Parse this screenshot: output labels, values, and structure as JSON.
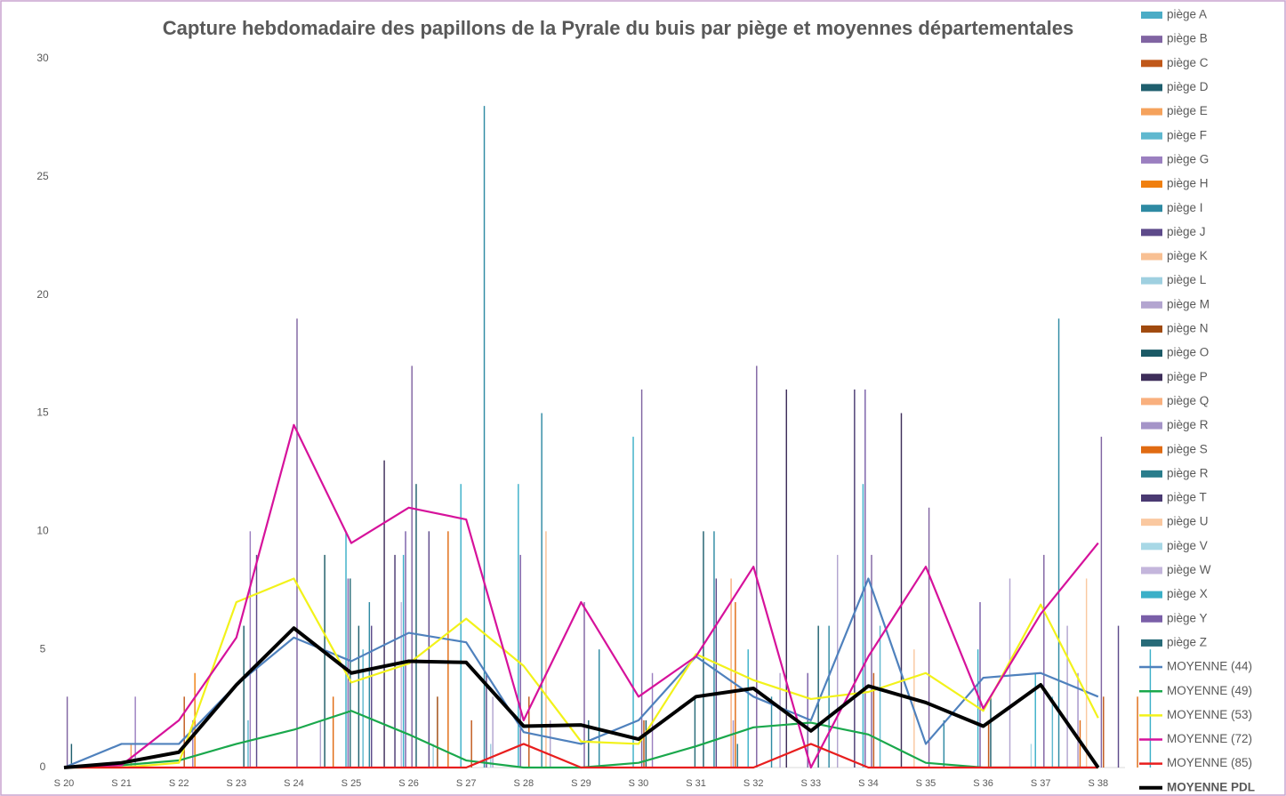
{
  "chart_data": {
    "type": "bar",
    "title": "Capture hebdomadaire des papillons de la Pyrale du buis par piège et moyennes départementales",
    "categories": [
      "S 20",
      "S 21",
      "S 22",
      "S 23",
      "S 24",
      "S 25",
      "S 26",
      "S 27",
      "S 28",
      "S 29",
      "S 30",
      "S 31",
      "S 32",
      "S 33",
      "S 34",
      "S 35",
      "S 36",
      "S 37",
      "S 38"
    ],
    "ylim": [
      0,
      30
    ],
    "yticks": [
      0,
      5,
      10,
      15,
      20,
      25,
      30
    ],
    "grid": false,
    "legend": "right",
    "series": [
      {
        "name": "piège A",
        "color": "#4bacc6",
        "values": [
          0,
          0,
          0,
          0,
          0,
          0,
          0,
          0,
          0,
          0,
          0,
          0,
          0,
          0,
          0,
          0,
          0,
          0,
          0
        ]
      },
      {
        "name": "piège B",
        "color": "#8064a2",
        "values": [
          3,
          0,
          0,
          0,
          19,
          0,
          17,
          0,
          0,
          7,
          16,
          0,
          17,
          0,
          9,
          11,
          0,
          9,
          14
        ]
      },
      {
        "name": "piège C",
        "color": "#c0581a",
        "values": [
          0,
          0,
          3,
          0,
          0,
          0,
          0,
          2,
          3,
          0,
          2,
          0,
          0,
          0,
          4,
          0,
          2,
          0,
          3
        ]
      },
      {
        "name": "piège D",
        "color": "#1f5f6e",
        "values": [
          1,
          0,
          0,
          6,
          0,
          6,
          12,
          0,
          0,
          2,
          2,
          10,
          0,
          6,
          0,
          0,
          3,
          0,
          0
        ]
      },
      {
        "name": "piège E",
        "color": "#f5a25c",
        "values": [
          0,
          1,
          0,
          0,
          0,
          0,
          0,
          0,
          0,
          0,
          0,
          0,
          0,
          0,
          0,
          0,
          0,
          0,
          0
        ]
      },
      {
        "name": "piège F",
        "color": "#5fb8cf",
        "values": [
          0,
          0,
          0,
          2,
          0,
          5,
          0,
          0,
          0,
          0,
          0,
          0,
          0,
          0,
          6,
          0,
          0,
          3,
          0
        ]
      },
      {
        "name": "piège G",
        "color": "#9b7fc0",
        "values": [
          0,
          3,
          2,
          10,
          0,
          0,
          0,
          0,
          0,
          0,
          4,
          0,
          0,
          0,
          0,
          0,
          0,
          0,
          0
        ]
      },
      {
        "name": "piège H",
        "color": "#f07f0f",
        "values": [
          0,
          0,
          4,
          0,
          0,
          0,
          0,
          0,
          0,
          0,
          0,
          0,
          0,
          0,
          0,
          0,
          0,
          0,
          0
        ]
      },
      {
        "name": "piège I",
        "color": "#2e8aa3",
        "values": [
          0,
          0,
          0,
          0,
          0,
          7,
          0,
          28,
          15,
          5,
          0,
          10,
          3,
          6,
          0,
          2,
          0,
          19,
          0
        ]
      },
      {
        "name": "piège J",
        "color": "#5d4a8a",
        "values": [
          0,
          0,
          0,
          9,
          0,
          6,
          10,
          4,
          0,
          0,
          0,
          8,
          0,
          0,
          0,
          0,
          0,
          0,
          6
        ]
      },
      {
        "name": "piège K",
        "color": "#f8c093",
        "values": [
          0,
          0,
          0,
          0,
          0,
          0,
          0,
          0,
          10,
          0,
          0,
          0,
          0,
          0,
          0,
          0,
          0,
          0,
          0
        ]
      },
      {
        "name": "piège L",
        "color": "#9fd0e0",
        "values": [
          0,
          0,
          0,
          0,
          0,
          0,
          1,
          1,
          0,
          0,
          0,
          0,
          0,
          0,
          0,
          0,
          0,
          0,
          0
        ]
      },
      {
        "name": "piège M",
        "color": "#b3a5d0",
        "values": [
          0,
          0,
          0,
          0,
          2,
          0,
          0,
          3,
          2,
          0,
          0,
          0,
          4,
          9,
          0,
          0,
          8,
          6,
          0
        ]
      },
      {
        "name": "piège N",
        "color": "#a04a0e",
        "values": [
          0,
          0,
          0,
          0,
          0,
          0,
          3,
          0,
          0,
          0,
          0,
          0,
          0,
          0,
          0,
          0,
          0,
          0,
          0
        ]
      },
      {
        "name": "piège O",
        "color": "#1b5a66",
        "values": [
          0,
          0,
          0,
          0,
          9,
          0,
          0,
          0,
          0,
          0,
          0,
          0,
          0,
          0,
          0,
          0,
          0,
          0,
          0
        ]
      },
      {
        "name": "piège P",
        "color": "#3e2e5a",
        "values": [
          0,
          0,
          0,
          0,
          0,
          13,
          0,
          0,
          0,
          0,
          0,
          0,
          16,
          0,
          15,
          0,
          0,
          0,
          0
        ]
      },
      {
        "name": "piège Q",
        "color": "#f9b07e",
        "values": [
          0,
          0,
          0,
          0,
          0,
          0,
          0,
          0,
          0,
          0,
          0,
          8,
          0,
          0,
          0,
          0,
          0,
          0,
          0
        ]
      },
      {
        "name": "piège R",
        "color": "#a594c8",
        "values": [
          0,
          0,
          0,
          0,
          0,
          0,
          0,
          0,
          0,
          0,
          0,
          2,
          0,
          0,
          0,
          0,
          0,
          4,
          0
        ]
      },
      {
        "name": "piège S",
        "color": "#e06b12",
        "values": [
          0,
          0,
          0,
          0,
          3,
          0,
          10,
          0,
          0,
          0,
          0,
          7,
          0,
          0,
          0,
          0,
          0,
          2,
          3
        ]
      },
      {
        "name": "piège R",
        "color": "#2a7d8c",
        "values": [
          0,
          0,
          0,
          0,
          0,
          0,
          0,
          0,
          0,
          0,
          0,
          1,
          0,
          0,
          0,
          0,
          0,
          0,
          0
        ]
      },
      {
        "name": "piège T",
        "color": "#4a3a72",
        "values": [
          0,
          0,
          0,
          0,
          0,
          9,
          0,
          0,
          0,
          0,
          0,
          0,
          0,
          16,
          0,
          0,
          0,
          0,
          0
        ]
      },
      {
        "name": "piège U",
        "color": "#fac8a0",
        "values": [
          0,
          0,
          0,
          0,
          0,
          0,
          0,
          0,
          0,
          0,
          0,
          0,
          0,
          0,
          5,
          0,
          0,
          8,
          0
        ]
      },
      {
        "name": "piège V",
        "color": "#a8d8e6",
        "values": [
          0,
          0,
          0,
          0,
          0,
          0,
          0,
          0,
          0,
          0,
          0,
          0,
          0,
          0,
          0,
          0,
          1,
          0,
          0
        ]
      },
      {
        "name": "piège W",
        "color": "#c4b6dc",
        "values": [
          0,
          0,
          0,
          0,
          0,
          7,
          0,
          0,
          0,
          0,
          0,
          0,
          0,
          0,
          0,
          0,
          0,
          0,
          0
        ]
      },
      {
        "name": "piège X",
        "color": "#3bb0c8",
        "values": [
          0,
          0,
          0,
          0,
          10,
          9,
          12,
          12,
          0,
          14,
          0,
          5,
          0,
          12,
          0,
          5,
          4,
          0,
          5
        ]
      },
      {
        "name": "piège Y",
        "color": "#7a5fa8",
        "values": [
          0,
          0,
          0,
          0,
          8,
          10,
          0,
          9,
          0,
          0,
          0,
          0,
          4,
          16,
          0,
          7,
          0,
          0,
          0
        ]
      },
      {
        "name": "piège Z",
        "color": "#276b78",
        "values": [
          0,
          0,
          0,
          0,
          8,
          0,
          0,
          0,
          0,
          0,
          3,
          0,
          0,
          0,
          0,
          0,
          0,
          0,
          0
        ]
      },
      {
        "name": "MOYENNE (44)",
        "type": "line",
        "color": "#4f81bd",
        "values": [
          0,
          1,
          1,
          3.5,
          5.5,
          4.5,
          5.7,
          5.3,
          1.5,
          1,
          2,
          4.7,
          3,
          2,
          8,
          1,
          3.8,
          4,
          3
        ]
      },
      {
        "name": "MOYENNE (49)",
        "type": "line",
        "color": "#1aa84c",
        "values": [
          0,
          0.1,
          0.3,
          1,
          1.6,
          2.4,
          1.4,
          0.3,
          0,
          0,
          0.2,
          0.9,
          1.7,
          1.9,
          1.4,
          0.2,
          0,
          0,
          0
        ]
      },
      {
        "name": "MOYENNE (53)",
        "type": "line",
        "color": "#f2f21a",
        "values": [
          0,
          0,
          0.2,
          7,
          8,
          3.6,
          4.4,
          6.3,
          4.3,
          1.1,
          1,
          4.8,
          3.7,
          2.9,
          3.2,
          4,
          2.4,
          6.9,
          2.1
        ]
      },
      {
        "name": "MOYENNE (72)",
        "type": "line",
        "color": "#d6129b",
        "values": [
          0,
          0.1,
          2,
          5.5,
          14.5,
          9.5,
          11,
          10.5,
          2,
          7,
          3,
          4.7,
          8.5,
          0,
          4.7,
          8.5,
          2.5,
          6.5,
          9.5
        ]
      },
      {
        "name": "MOYENNE (85)",
        "type": "line",
        "color": "#e81e1e",
        "values": [
          0,
          0,
          0,
          0,
          0,
          0,
          0,
          0,
          1,
          0,
          0,
          0,
          0,
          1,
          0,
          0,
          0,
          0,
          0
        ]
      },
      {
        "name": "MOYENNE PDL",
        "type": "line",
        "color": "#000000",
        "values": [
          0,
          0.2,
          0.65,
          3.5,
          5.9,
          4,
          4.5,
          4.45,
          1.75,
          1.8,
          1.2,
          3,
          3.35,
          1.55,
          3.45,
          2.75,
          1.75,
          3.5,
          0
        ]
      }
    ]
  }
}
